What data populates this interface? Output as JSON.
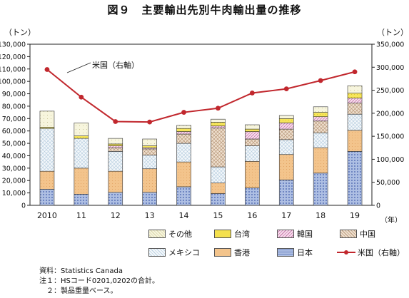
{
  "title": "図９　主要輸出先別牛肉輸出量の推移",
  "left_unit": "（トン）",
  "right_unit": "（トン）",
  "year_unit": "（年）",
  "callout": "米国（右軸）",
  "notes": [
    "資料：Statistics Canada",
    "注１：HSコード0201,0202の合計。",
    "　２：製品重量ベース。"
  ],
  "colors": {
    "japan": "#9fb3dc",
    "hongkong": "#f3c48c",
    "mexico": "#dfeaf3",
    "china": "#ead7c4",
    "korea": "#f1c9e2",
    "taiwan": "#f4e04d",
    "other": "#f5f3d6",
    "usa": "#c1272d"
  },
  "chart_data": {
    "type": "bar",
    "stacked": true,
    "categories": [
      "2010",
      "11",
      "12",
      "13",
      "14",
      "15",
      "16",
      "17",
      "18",
      "19"
    ],
    "series": [
      {
        "name": "日本",
        "key": "japan",
        "values": [
          13000,
          9000,
          10500,
          10500,
          15000,
          9500,
          14000,
          20500,
          26000,
          43500
        ]
      },
      {
        "name": "香港",
        "key": "hongkong",
        "values": [
          14500,
          21000,
          17000,
          19000,
          20000,
          8500,
          21500,
          20500,
          20500,
          17000
        ]
      },
      {
        "name": "メキシコ",
        "key": "mexico",
        "values": [
          34500,
          24000,
          16000,
          11000,
          15000,
          13000,
          12500,
          12000,
          12000,
          13000
        ]
      },
      {
        "name": "中国",
        "key": "china",
        "values": [
          0,
          0,
          3000,
          5000,
          7500,
          31500,
          5500,
          8500,
          9500,
          9000
        ]
      },
      {
        "name": "韓国",
        "key": "korea",
        "values": [
          0,
          0,
          1500,
          1000,
          2000,
          1500,
          6000,
          5000,
          3500,
          4000
        ]
      },
      {
        "name": "台湾",
        "key": "taiwan",
        "values": [
          1000,
          2000,
          1500,
          1500,
          2500,
          3000,
          2000,
          3500,
          3500,
          4000
        ]
      },
      {
        "name": "その他",
        "key": "other",
        "values": [
          13000,
          10500,
          4500,
          5500,
          2500,
          2500,
          3500,
          2500,
          4500,
          6000
        ]
      }
    ],
    "line": {
      "name": "米国（右軸）",
      "axis": "right",
      "values": [
        295000,
        235000,
        182000,
        181000,
        202000,
        211000,
        244000,
        253000,
        271000,
        290000
      ]
    },
    "ylim": [
      0,
      130000
    ],
    "y_ticks": [
      "0",
      "10,000",
      "20,000",
      "30,000",
      "40,000",
      "50,000",
      "60,000",
      "70,000",
      "80,000",
      "90,000",
      "100,000",
      "110,000",
      "120,000",
      "130,000"
    ],
    "y_right_lim": [
      0,
      350000
    ],
    "y_right_ticks": [
      "0",
      "50,000",
      "100,000",
      "150,000",
      "200,000",
      "250,000",
      "300,000",
      "350,000"
    ],
    "legend": {
      "row1": [
        "その他",
        "台湾",
        "韓国",
        "中国"
      ],
      "row2": [
        "メキシコ",
        "香港",
        "日本",
        "米国（右軸）"
      ]
    },
    "grid": false
  }
}
